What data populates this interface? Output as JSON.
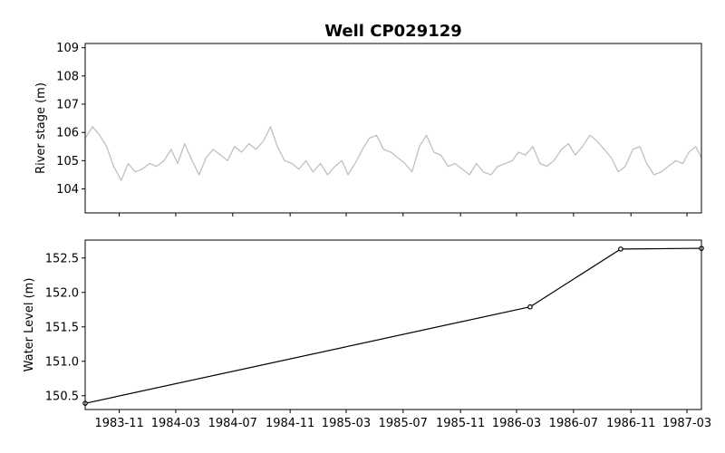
{
  "chart_data": [
    {
      "type": "line",
      "title": "Well CP029129",
      "xlabel": "",
      "ylabel": "River stage (m)",
      "ylim": [
        103.15,
        109.15
      ],
      "yticks": [
        "104",
        "105",
        "106",
        "107",
        "108",
        "109"
      ],
      "xlim": [
        "1983-08-20",
        "1987-04-01"
      ],
      "shows_x_tick_labels": false,
      "grid": false,
      "colors": {
        "series": "#c0c0c0"
      },
      "series": [
        {
          "name": "",
          "x": [
            "1983-08-20",
            "1983-09-05",
            "1983-09-20",
            "1983-10-05",
            "1983-10-20",
            "1983-11-05",
            "1983-11-20",
            "1983-12-05",
            "1983-12-20",
            "1984-01-05",
            "1984-01-20",
            "1984-02-05",
            "1984-02-20",
            "1984-03-05",
            "1984-03-20",
            "1984-04-05",
            "1984-04-20",
            "1984-05-05",
            "1984-05-20",
            "1984-06-05",
            "1984-06-20",
            "1984-07-05",
            "1984-07-20",
            "1984-08-05",
            "1984-08-20",
            "1984-09-05",
            "1984-09-20",
            "1984-10-05",
            "1984-10-20",
            "1984-11-05",
            "1984-11-20",
            "1984-12-05",
            "1984-12-20",
            "1985-01-05",
            "1985-01-20",
            "1985-02-05",
            "1985-02-20",
            "1985-03-05",
            "1985-03-20",
            "1985-04-05",
            "1985-04-20",
            "1985-05-05",
            "1985-05-20",
            "1985-06-05",
            "1985-06-20",
            "1985-07-05",
            "1985-07-20",
            "1985-08-05",
            "1985-08-20",
            "1985-09-05",
            "1985-09-20",
            "1985-10-05",
            "1985-10-20",
            "1985-11-05",
            "1985-11-20",
            "1985-12-05",
            "1985-12-20",
            "1986-01-05",
            "1986-01-20",
            "1986-02-05",
            "1986-02-20",
            "1986-03-05",
            "1986-03-20",
            "1986-04-05",
            "1986-04-20",
            "1986-05-05",
            "1986-05-20",
            "1986-06-05",
            "1986-06-20",
            "1986-07-05",
            "1986-07-20",
            "1986-08-05",
            "1986-08-20",
            "1986-09-05",
            "1986-09-20",
            "1986-10-05",
            "1986-10-20",
            "1986-11-05",
            "1986-11-20",
            "1986-12-05",
            "1986-12-20",
            "1987-01-05",
            "1987-01-20",
            "1987-02-05",
            "1987-02-20",
            "1987-03-05",
            "1987-03-20",
            "1987-04-01"
          ],
          "values": [
            105.8,
            106.2,
            105.9,
            105.5,
            104.8,
            104.3,
            104.9,
            104.6,
            104.7,
            104.9,
            104.8,
            105.0,
            105.4,
            104.9,
            105.6,
            105.0,
            104.5,
            105.1,
            105.4,
            105.2,
            105.0,
            105.5,
            105.3,
            105.6,
            105.4,
            105.7,
            106.2,
            105.5,
            105.0,
            104.9,
            104.7,
            105.0,
            104.6,
            104.9,
            104.5,
            104.8,
            105.0,
            104.5,
            104.9,
            105.4,
            105.8,
            105.9,
            105.4,
            105.3,
            105.1,
            104.9,
            104.6,
            105.5,
            105.9,
            105.3,
            105.2,
            104.8,
            104.9,
            104.7,
            104.5,
            104.9,
            104.6,
            104.5,
            104.8,
            104.9,
            105.0,
            105.3,
            105.2,
            105.5,
            104.9,
            104.8,
            105.0,
            105.4,
            105.6,
            105.2,
            105.5,
            105.9,
            105.7,
            105.4,
            105.1,
            104.6,
            104.8,
            105.4,
            105.5,
            104.9,
            104.5,
            104.6,
            104.8,
            105.0,
            104.9,
            105.3,
            105.5,
            105.1
          ]
        }
      ]
    },
    {
      "type": "line",
      "title": "",
      "xlabel": "",
      "ylabel": "Water Level (m)",
      "ylim": [
        150.3,
        152.76
      ],
      "yticks": [
        "150.5",
        "151.0",
        "151.5",
        "152.0",
        "152.5"
      ],
      "xlim": [
        "1983-08-20",
        "1987-04-01"
      ],
      "xticks": [
        "1983-11",
        "1984-03",
        "1984-07",
        "1984-11",
        "1985-03",
        "1985-07",
        "1985-11",
        "1986-03",
        "1986-07",
        "1986-11",
        "1987-03"
      ],
      "grid": false,
      "markers": true,
      "colors": {
        "series": "#000000"
      },
      "series": [
        {
          "name": "",
          "x": [
            "1983-08-20",
            "1986-03-30",
            "1986-10-10",
            "1987-04-01"
          ],
          "values": [
            150.39,
            151.79,
            152.63,
            152.64
          ]
        }
      ]
    }
  ]
}
